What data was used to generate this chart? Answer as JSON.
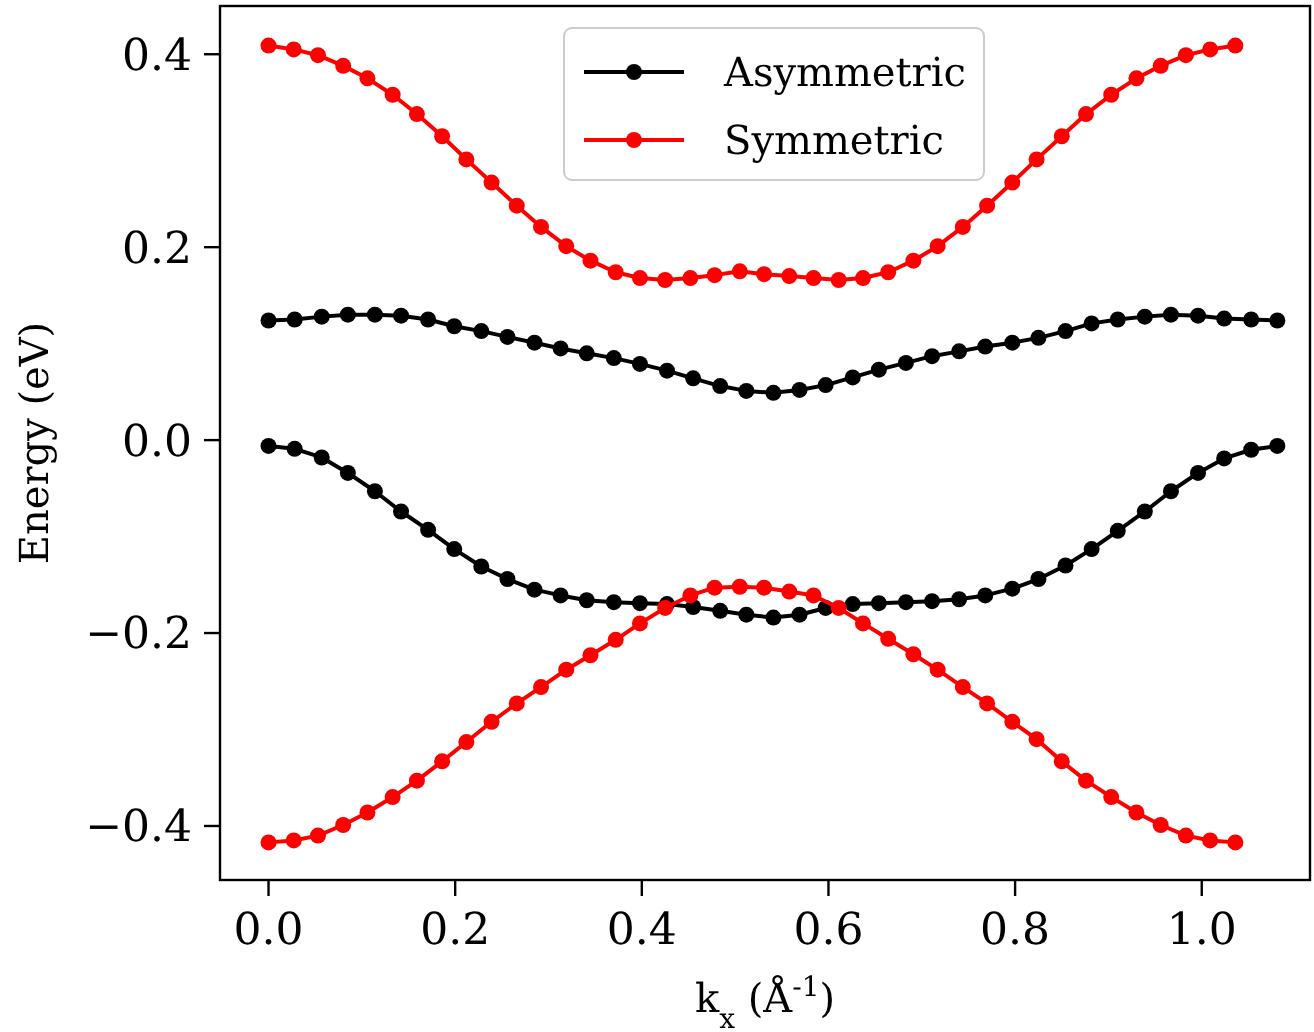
{
  "chart_data": {
    "type": "line",
    "xlabel": "k$_{x}$ (Å$^{-1}$)",
    "ylabel": "Energy (eV)",
    "xlim": [
      -0.052,
      1.116
    ],
    "ylim": [
      -0.456,
      0.45
    ],
    "xticks": [
      {
        "value": 0,
        "label": "0.0"
      },
      0.2,
      0.4,
      0.6,
      0.8,
      {
        "value": 1,
        "label": "1.0"
      }
    ],
    "yticks": [
      {
        "value": -0.4,
        "label": "−0.4"
      },
      {
        "value": -0.2,
        "label": "−0.2"
      },
      {
        "value": 0,
        "label": "0.0"
      },
      0.2,
      0.4
    ],
    "grid": false,
    "legend": "top",
    "marker": "circle",
    "line_style": "solid",
    "series": [
      {
        "name": "Asymmetric",
        "color": "#000000",
        "x": [
          0,
          0.028,
          0.057,
          0.085,
          0.114,
          0.142,
          0.171,
          0.199,
          0.228,
          0.256,
          0.285,
          0.313,
          0.341,
          0.37,
          0.398,
          0.427,
          0.455,
          0.484,
          0.512,
          0.541,
          0.569,
          0.597,
          0.626,
          0.654,
          0.683,
          0.711,
          0.74,
          0.768,
          0.797,
          0.825,
          0.854,
          0.882,
          0.91,
          0.939,
          0.967,
          0.996,
          1.024,
          1.053,
          1.081
        ],
        "values": [
          0.124,
          0.125,
          0.128,
          0.13,
          0.13,
          0.129,
          0.125,
          0.118,
          0.113,
          0.107,
          0.101,
          0.095,
          0.09,
          0.085,
          0.079,
          0.072,
          0.064,
          0.056,
          0.051,
          0.049,
          0.052,
          0.057,
          0.065,
          0.073,
          0.08,
          0.087,
          0.092,
          0.097,
          0.101,
          0.106,
          0.113,
          0.121,
          0.125,
          0.128,
          0.13,
          0.129,
          0.126,
          0.125,
          0.124
        ]
      },
      {
        "color": "#000000",
        "x": [
          0,
          0.028,
          0.057,
          0.085,
          0.114,
          0.142,
          0.171,
          0.199,
          0.228,
          0.256,
          0.285,
          0.313,
          0.341,
          0.37,
          0.398,
          0.427,
          0.455,
          0.484,
          0.512,
          0.541,
          0.569,
          0.597,
          0.626,
          0.654,
          0.683,
          0.711,
          0.74,
          0.768,
          0.797,
          0.825,
          0.854,
          0.882,
          0.91,
          0.939,
          0.967,
          0.996,
          1.024,
          1.053,
          1.081
        ],
        "values": [
          -0.006,
          -0.009,
          -0.018,
          -0.034,
          -0.053,
          -0.074,
          -0.093,
          -0.113,
          -0.131,
          -0.144,
          -0.155,
          -0.161,
          -0.166,
          -0.168,
          -0.169,
          -0.17,
          -0.173,
          -0.177,
          -0.181,
          -0.184,
          -0.181,
          -0.174,
          -0.17,
          -0.169,
          -0.168,
          -0.167,
          -0.165,
          -0.161,
          -0.154,
          -0.144,
          -0.13,
          -0.113,
          -0.094,
          -0.074,
          -0.053,
          -0.034,
          -0.019,
          -0.01,
          -0.006
        ]
      },
      {
        "name": "Symmetric",
        "color": "#ff0000",
        "x": [
          0,
          0.027,
          0.053,
          0.08,
          0.106,
          0.133,
          0.159,
          0.186,
          0.212,
          0.239,
          0.266,
          0.292,
          0.319,
          0.345,
          0.372,
          0.398,
          0.425,
          0.452,
          0.478,
          0.505,
          0.531,
          0.558,
          0.584,
          0.611,
          0.637,
          0.664,
          0.691,
          0.717,
          0.744,
          0.77,
          0.797,
          0.823,
          0.85,
          0.876,
          0.903,
          0.93,
          0.956,
          0.983,
          1.009,
          1.036
        ],
        "values": [
          0.409,
          0.405,
          0.399,
          0.388,
          0.375,
          0.358,
          0.338,
          0.315,
          0.291,
          0.267,
          0.243,
          0.221,
          0.201,
          0.186,
          0.174,
          0.168,
          0.166,
          0.168,
          0.171,
          0.175,
          0.172,
          0.17,
          0.168,
          0.166,
          0.168,
          0.174,
          0.186,
          0.201,
          0.221,
          0.243,
          0.267,
          0.291,
          0.315,
          0.338,
          0.358,
          0.375,
          0.388,
          0.399,
          0.405,
          0.409
        ]
      },
      {
        "color": "#ff0000",
        "x": [
          0,
          0.027,
          0.053,
          0.08,
          0.106,
          0.133,
          0.159,
          0.186,
          0.212,
          0.239,
          0.266,
          0.292,
          0.319,
          0.345,
          0.372,
          0.398,
          0.425,
          0.452,
          0.478,
          0.505,
          0.531,
          0.558,
          0.584,
          0.611,
          0.637,
          0.664,
          0.691,
          0.717,
          0.744,
          0.77,
          0.797,
          0.823,
          0.85,
          0.876,
          0.903,
          0.93,
          0.956,
          0.983,
          1.009,
          1.036
        ],
        "values": [
          -0.417,
          -0.415,
          -0.41,
          -0.399,
          -0.386,
          -0.37,
          -0.353,
          -0.333,
          -0.313,
          -0.292,
          -0.273,
          -0.256,
          -0.238,
          -0.223,
          -0.207,
          -0.19,
          -0.174,
          -0.161,
          -0.153,
          -0.152,
          -0.153,
          -0.157,
          -0.161,
          -0.174,
          -0.19,
          -0.206,
          -0.222,
          -0.238,
          -0.256,
          -0.273,
          -0.292,
          -0.31,
          -0.333,
          -0.353,
          -0.37,
          -0.386,
          -0.399,
          -0.41,
          -0.415,
          -0.417
        ]
      }
    ]
  }
}
